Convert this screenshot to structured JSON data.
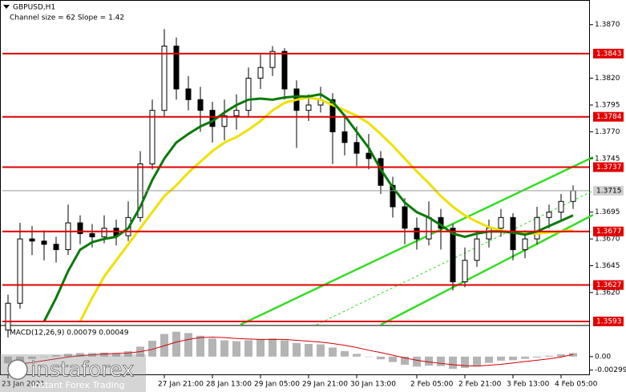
{
  "chart_data": [
    {
      "type": "candlestick",
      "title": "GBPUSD,H1",
      "subtitle": "Channel size = 62 Slope = 1.42",
      "categories": [
        "23 Jan 2021",
        null,
        null,
        null,
        null,
        null,
        null,
        null,
        null,
        null,
        null,
        null,
        null,
        "27 Jan 21:00",
        null,
        null,
        null,
        "28 Jan 13:00",
        null,
        null,
        null,
        "29 Jan 05:00",
        null,
        null,
        null,
        "29 Jan 21:00",
        null,
        null,
        null,
        "30 Jan 13:00",
        null,
        null,
        null,
        null,
        "2 Feb 05:00",
        null,
        null,
        null,
        "2 Feb 21:00",
        null,
        null,
        null,
        "3 Feb 13:00",
        null,
        null,
        null,
        "4 Feb 05:00",
        null
      ],
      "ohlc": [
        [
          1.3585,
          1.3618,
          1.3578,
          1.361
        ],
        [
          1.361,
          1.3685,
          1.3605,
          1.367
        ],
        [
          1.367,
          1.3682,
          1.3655,
          1.3668
        ],
        [
          1.3668,
          1.3678,
          1.365,
          1.3665
        ],
        [
          1.3665,
          1.3672,
          1.3648,
          1.366
        ],
        [
          1.366,
          1.3702,
          1.3655,
          1.3685
        ],
        [
          1.3685,
          1.3692,
          1.3665,
          1.3675
        ],
        [
          1.3675,
          1.3684,
          1.3662,
          1.3672
        ],
        [
          1.3672,
          1.3692,
          1.3666,
          1.368
        ],
        [
          1.368,
          1.3688,
          1.3664,
          1.3673
        ],
        [
          1.3673,
          1.3705,
          1.3668,
          1.369
        ],
        [
          1.369,
          1.3752,
          1.3686,
          1.374
        ],
        [
          1.374,
          1.38,
          1.3735,
          1.379
        ],
        [
          1.379,
          1.3866,
          1.3784,
          1.385
        ],
        [
          1.385,
          1.3858,
          1.38,
          1.381
        ],
        [
          1.381,
          1.3822,
          1.379,
          1.38
        ],
        [
          1.38,
          1.3812,
          1.377,
          1.379
        ],
        [
          1.379,
          1.3798,
          1.376,
          1.3775
        ],
        [
          1.3775,
          1.38,
          1.3762,
          1.3785
        ],
        [
          1.3785,
          1.3805,
          1.3772,
          1.379
        ],
        [
          1.379,
          1.383,
          1.3784,
          1.382
        ],
        [
          1.382,
          1.3842,
          1.381,
          1.383
        ],
        [
          1.383,
          1.385,
          1.3822,
          1.3845
        ],
        [
          1.3845,
          1.3848,
          1.38,
          1.381
        ],
        [
          1.381,
          1.3818,
          1.3755,
          1.379
        ],
        [
          1.379,
          1.3805,
          1.378,
          1.3795
        ],
        [
          1.3795,
          1.3812,
          1.3788,
          1.38
        ],
        [
          1.38,
          1.3806,
          1.374,
          1.377
        ],
        [
          1.377,
          1.3785,
          1.3748,
          1.376
        ],
        [
          1.376,
          1.3775,
          1.3738,
          1.375
        ],
        [
          1.375,
          1.3768,
          1.3735,
          1.3745
        ],
        [
          1.3745,
          1.3752,
          1.3712,
          1.372
        ],
        [
          1.372,
          1.3728,
          1.369,
          1.37
        ],
        [
          1.37,
          1.3708,
          1.3665,
          1.368
        ],
        [
          1.368,
          1.369,
          1.366,
          1.367
        ],
        [
          1.367,
          1.3705,
          1.3664,
          1.369
        ],
        [
          1.369,
          1.3698,
          1.366,
          1.368
        ],
        [
          1.368,
          1.3684,
          1.3622,
          1.363
        ],
        [
          1.363,
          1.3662,
          1.3625,
          1.365
        ],
        [
          1.365,
          1.3678,
          1.3644,
          1.367
        ],
        [
          1.367,
          1.3688,
          1.3662,
          1.368
        ],
        [
          1.368,
          1.3698,
          1.3672,
          1.369
        ],
        [
          1.369,
          1.3694,
          1.365,
          1.366
        ],
        [
          1.366,
          1.3678,
          1.3652,
          1.367
        ],
        [
          1.367,
          1.37,
          1.3665,
          1.369
        ],
        [
          1.369,
          1.3702,
          1.368,
          1.3695
        ],
        [
          1.3695,
          1.3712,
          1.3688,
          1.3705
        ],
        [
          1.3705,
          1.372,
          1.3698,
          1.3715
        ]
      ],
      "series": [
        {
          "color": "#f0e000",
          "values": [
            null,
            null,
            null,
            null,
            null,
            null,
            1.3593,
            1.3615,
            1.3635,
            1.365,
            1.3665,
            1.368,
            1.3695,
            1.371,
            1.372,
            1.3732,
            1.3742,
            1.3752,
            1.376,
            1.3765,
            1.3772,
            1.378,
            1.379,
            1.3797,
            1.38,
            1.3802,
            1.38,
            1.3795,
            1.379,
            1.3785,
            1.3778,
            1.3768,
            1.3757,
            1.3745,
            1.3733,
            1.3722,
            1.371,
            1.37,
            1.3692,
            1.3686,
            1.3681,
            1.3678,
            1.3676,
            1.3675,
            1.3675,
            1.3676,
            1.3677,
            1.3678
          ]
        },
        {
          "color": "#0a7a0a",
          "values": [
            null,
            null,
            null,
            1.3593,
            1.3615,
            1.364,
            1.366,
            1.3667,
            1.367,
            1.3672,
            1.368,
            1.37,
            1.3725,
            1.3745,
            1.376,
            1.3768,
            1.3775,
            1.378,
            1.3788,
            1.3795,
            1.38,
            1.3801,
            1.38,
            1.3802,
            1.3803,
            1.3803,
            1.3805,
            1.3798,
            1.3785,
            1.377,
            1.3755,
            1.3735,
            1.3718,
            1.3704,
            1.3695,
            1.369,
            1.3683,
            1.3675,
            1.3672,
            1.3675,
            1.3677,
            1.3677,
            1.3676,
            1.3674,
            1.3677,
            1.3682,
            1.3687,
            1.3692
          ]
        }
      ],
      "levels": [
        1.3843,
        1.3784,
        1.3737,
        1.3677,
        1.3627,
        1.3593
      ],
      "level_color": "#e00000",
      "current": 1.3715,
      "ylim": [
        1.359,
        1.3893
      ],
      "yticks": [
        {
          "value": 1.387,
          "label": "1.3870"
        },
        {
          "value": 1.382,
          "label": "1.3820"
        },
        1.3795,
        {
          "value": 1.377,
          "label": "1.3770"
        },
        1.3745,
        1.3695,
        {
          "value": 1.367,
          "label": "1.3670"
        },
        1.3645,
        {
          "value": 1.362,
          "label": "1.3620"
        }
      ]
    },
    {
      "type": "macd",
      "title": "MACD(12,26,9) 0.00079 0.00049",
      "series": [
        {
          "color": "#b4b4b4",
          "values": [
            -0.0015,
            -0.001,
            -0.0005,
            0,
            0.0003,
            0.0006,
            0.0008,
            0.0008,
            0.0009,
            0.0008,
            0.0012,
            0.0022,
            0.0035,
            0.005,
            0.0055,
            0.0052,
            0.0046,
            0.004,
            0.0036,
            0.0034,
            0.0036,
            0.0038,
            0.004,
            0.0036,
            0.003,
            0.0028,
            0.0027,
            0.002,
            0.0012,
            0.0006,
            0,
            -0.0006,
            -0.0012,
            -0.0018,
            -0.0022,
            -0.002,
            -0.0021,
            -0.0027,
            -0.0025,
            -0.002,
            -0.0014,
            -0.0009,
            -0.0008,
            -0.0005,
            -0.0002,
            0.0002,
            0.0005,
            0.00079
          ]
        },
        {
          "color": "#d00000",
          "values": [
            -0.0018,
            -0.0016,
            -0.0013,
            -0.0009,
            -0.0005,
            -0.0001,
            0.0002,
            0.0004,
            0.0006,
            0.0007,
            0.0008,
            0.0011,
            0.0016,
            0.0024,
            0.0032,
            0.0038,
            0.0042,
            0.0043,
            0.0042,
            0.004,
            0.0039,
            0.0038,
            0.0038,
            0.0038,
            0.0036,
            0.0034,
            0.0032,
            0.0029,
            0.0025,
            0.002,
            0.0014,
            0.0009,
            0.0003,
            -0.0003,
            -0.0008,
            -0.0012,
            -0.0015,
            -0.0018,
            -0.002,
            -0.0021,
            -0.0019,
            -0.0017,
            -0.0014,
            -0.0011,
            -0.0008,
            -0.0005,
            -0.0001,
            0.00049
          ]
        }
      ],
      "ylim": [
        -0.0041,
        0.0067
      ],
      "yticks": [
        {
          "value": 0,
          "label": "0.00"
        },
        -0.00299
      ]
    },
    {
      "logo": "instaforex",
      "slogan": "Instant Forex Trading"
    }
  ]
}
